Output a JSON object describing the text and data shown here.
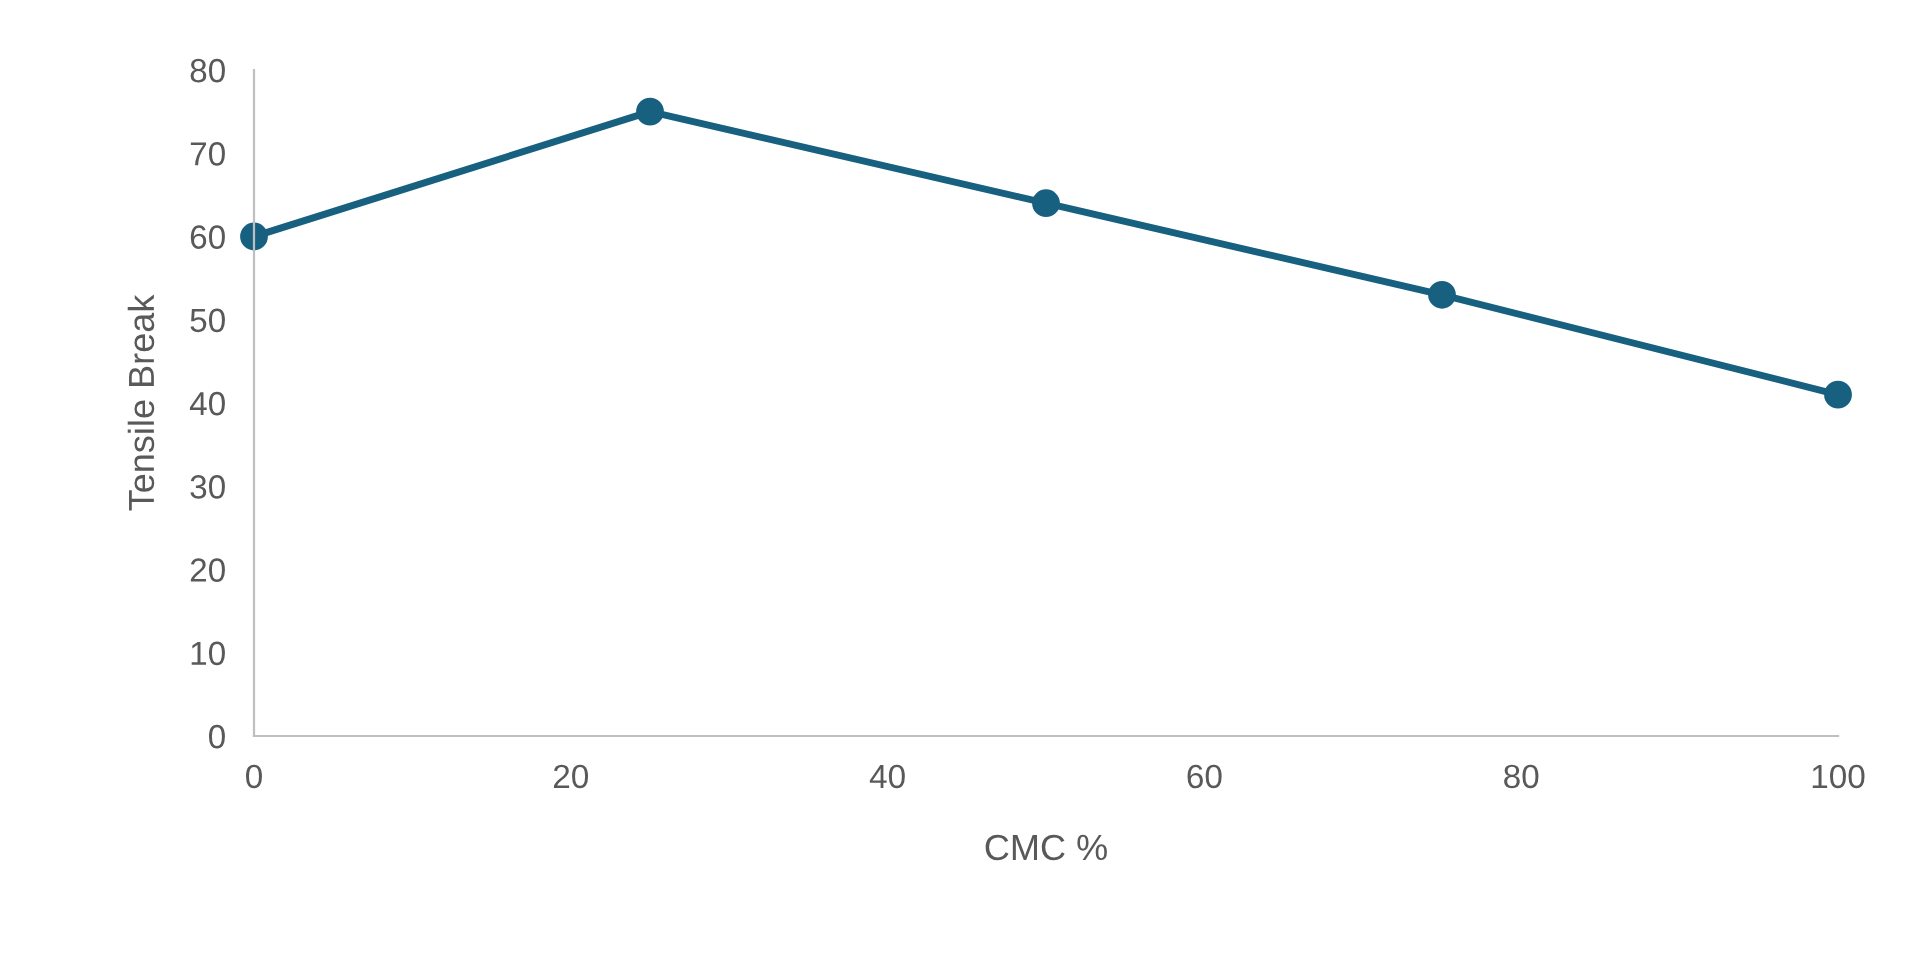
{
  "chart_data": {
    "type": "line",
    "xlabel": "CMC %",
    "ylabel": "Tensile Break",
    "x": [
      0,
      25,
      50,
      75,
      100
    ],
    "series": [
      {
        "color": "#17607f",
        "values": [
          60,
          75,
          64,
          53,
          41
        ]
      }
    ],
    "xlim": [
      0,
      100
    ],
    "xticks": [
      0,
      20,
      40,
      60,
      80,
      100
    ],
    "ylim": [
      0,
      80
    ],
    "yticks": [
      0,
      10,
      20,
      30,
      40,
      50,
      60,
      70,
      80
    ],
    "grid": false,
    "legend": false,
    "marker": "circle",
    "line_style": "solid"
  }
}
